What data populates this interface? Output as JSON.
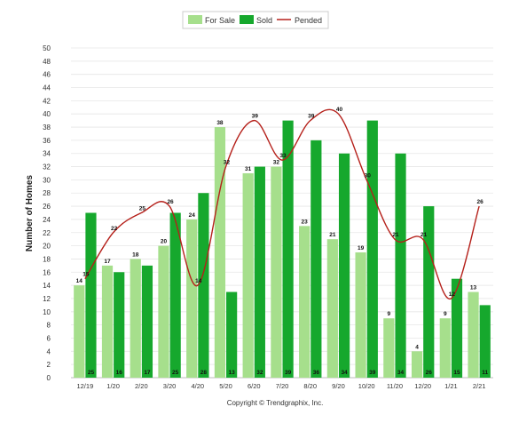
{
  "colors": {
    "for_sale": "#a6df8c",
    "sold": "#16a82d",
    "pended": "#b5201a",
    "grid": "#e6e6e6",
    "axis_text": "#333333",
    "label_text": "#111111"
  },
  "legend": {
    "for_sale_label": "For Sale",
    "sold_label": "Sold",
    "pended_label": "Pended"
  },
  "copyright": "Copyright © Trendgraphix, Inc.",
  "chart_data": {
    "type": "bar",
    "ylabel": "Number of Homes",
    "xlabel": "",
    "ylim": [
      0,
      50
    ],
    "ytick_step": 2,
    "grid": true,
    "legend_position": "top-center",
    "categories": [
      "12/19",
      "1/20",
      "2/20",
      "3/20",
      "4/20",
      "5/20",
      "6/20",
      "7/20",
      "8/20",
      "9/20",
      "10/20",
      "11/20",
      "12/20",
      "1/21",
      "2/21"
    ],
    "series": [
      {
        "name": "For Sale",
        "type": "bar",
        "values": [
          14,
          17,
          18,
          20,
          24,
          38,
          31,
          32,
          23,
          21,
          19,
          9,
          4,
          9,
          13
        ]
      },
      {
        "name": "Sold",
        "type": "bar",
        "values": [
          25,
          16,
          17,
          25,
          28,
          13,
          32,
          39,
          36,
          34,
          39,
          34,
          26,
          15,
          11
        ]
      },
      {
        "name": "Pended",
        "type": "line",
        "values": [
          15,
          22,
          25,
          26,
          14,
          32,
          39,
          33,
          39,
          40,
          30,
          21,
          21,
          12,
          26
        ]
      }
    ]
  }
}
